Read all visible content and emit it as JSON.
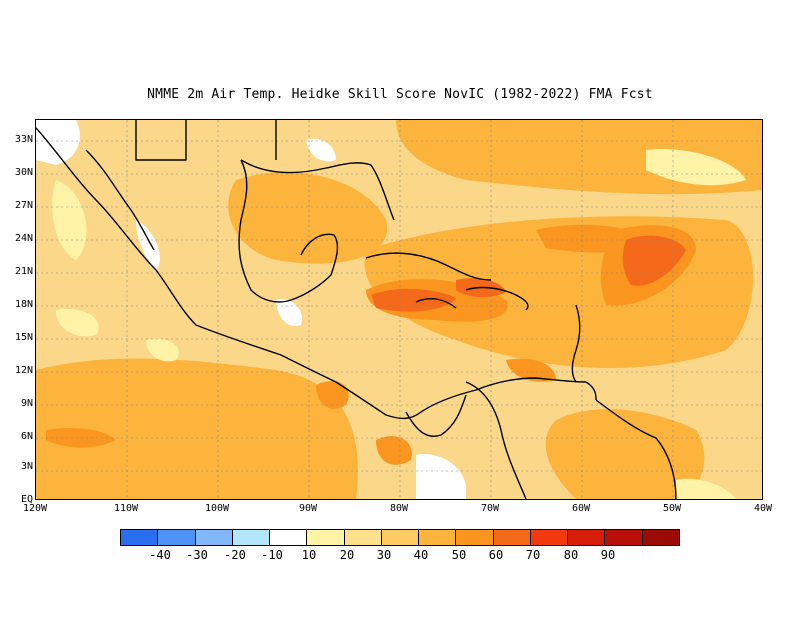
{
  "title": "NMME  2m Air Temp. Heidke Skill Score NovIC (1982-2022) FMA Fcst",
  "lat_labels": [
    "33N",
    "30N",
    "27N",
    "24N",
    "21N",
    "18N",
    "15N",
    "12N",
    "9N",
    "6N",
    "3N",
    "EQ"
  ],
  "lon_labels": [
    "120W",
    "110W",
    "100W",
    "90W",
    "80W",
    "70W",
    "60W",
    "50W",
    "40W"
  ],
  "colorbar": {
    "colors": [
      "#2a6ef0",
      "#4e92f5",
      "#82b8fa",
      "#b4e6fb",
      "#ffffff",
      "#fff3a8",
      "#fee18a",
      "#fccb63",
      "#fdb43c",
      "#fa9620",
      "#f56a1a",
      "#f23a0e",
      "#d61d08",
      "#b81008",
      "#9c0a06"
    ],
    "labels": [
      "-40",
      "-30",
      "-20",
      "-10",
      "10",
      "20",
      "30",
      "40",
      "50",
      "60",
      "70",
      "80",
      "90"
    ]
  }
}
